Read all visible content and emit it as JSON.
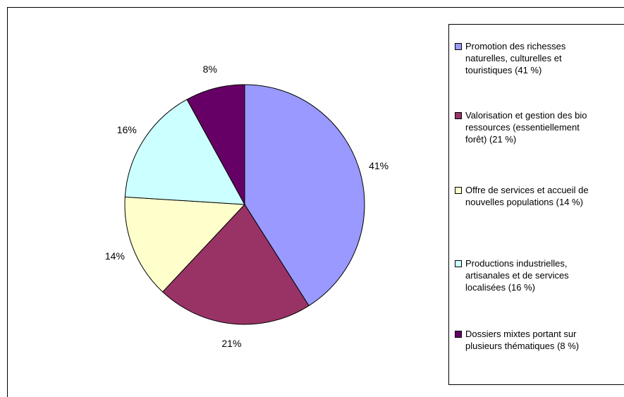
{
  "chart_data": {
    "type": "pie",
    "categories": [
      "Promotion des richesses naturelles, culturelles et touristiques (41 %)",
      "Valorisation et gestion des bio ressources (essentiellement forêt) (21 %)",
      "Offre de services et accueil de nouvelles populations (14 %)",
      "Productions industrielles, artisanales et de services localisées (16 %)",
      "Dossiers mixtes portant sur plusieurs thématiques (8 %)"
    ],
    "legend_lines": [
      "Promotion des richesses\nnaturelles, culturelles et\ntouristiques (41 %)",
      "Valorisation et gestion des bio\nressources (essentiellement\nforêt) (21 %)",
      "Offre de services et accueil de\nnouvelles populations (14 %)",
      "Productions industrielles,\nartisanales et de services\nlocalisées (16 %)",
      "Dossiers mixtes portant sur\nplusieurs thématiques (8 %)"
    ],
    "values": [
      41,
      21,
      14,
      16,
      8
    ],
    "data_labels": [
      "41%",
      "21%",
      "14%",
      "16%",
      "8%"
    ],
    "colors": [
      "#9999ff",
      "#993366",
      "#ffffcc",
      "#ccffff",
      "#660066"
    ],
    "legend_position": "right"
  }
}
